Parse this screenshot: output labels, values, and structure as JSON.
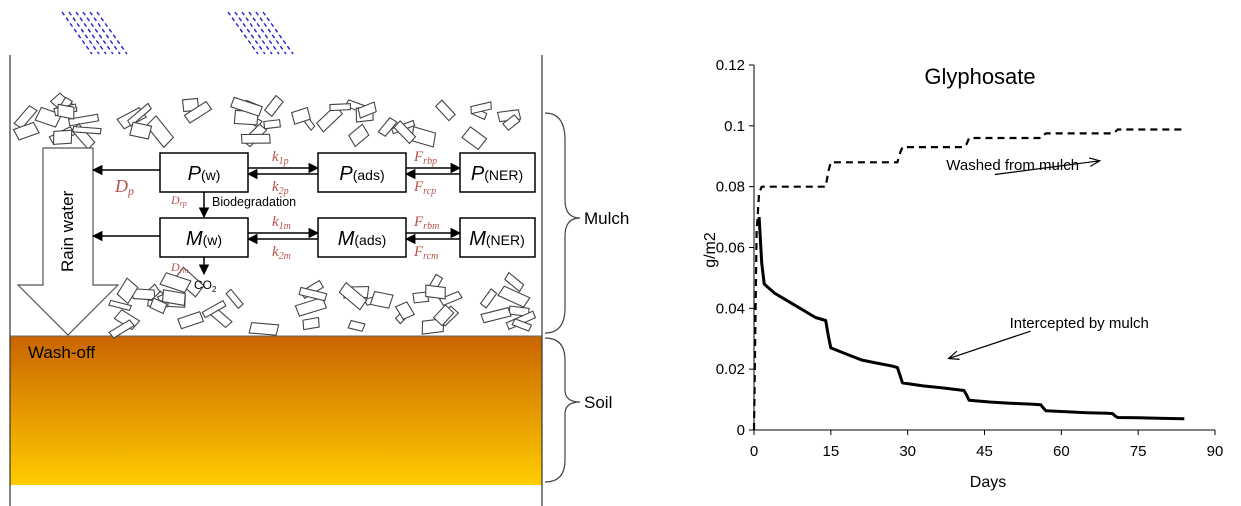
{
  "diagram": {
    "left_labels": {
      "rain_water": "Rain water",
      "wash_off": "Wash-off"
    },
    "layers": {
      "mulch": "Mulch",
      "soil": "Soil"
    },
    "boxes": {
      "pw": {
        "var": "P",
        "sub": "(w)"
      },
      "pads": {
        "var": "P",
        "sub": "(ads)"
      },
      "pner": {
        "var": "P",
        "sub": "(NER)"
      },
      "mw": {
        "var": "M",
        "sub": "(w)"
      },
      "mads": {
        "var": "M",
        "sub": "(ads)"
      },
      "mner": {
        "var": "M",
        "sub": "(NER)"
      }
    },
    "rates": {
      "k1p": {
        "base": "k",
        "sub": "1p"
      },
      "k2p": {
        "base": "k",
        "sub": "2p"
      },
      "k1m": {
        "base": "k",
        "sub": "1m"
      },
      "k2m": {
        "base": "k",
        "sub": "2m"
      },
      "frbp": {
        "base": "F",
        "sub": "rbp"
      },
      "frcp": {
        "base": "F",
        "sub": "rcp"
      },
      "frbm": {
        "base": "F",
        "sub": "rbm"
      },
      "frcm": {
        "base": "F",
        "sub": "rcm"
      },
      "dp": {
        "base": "D",
        "sub": "p"
      },
      "drp": {
        "base": "D",
        "sub": "rp"
      },
      "drm": {
        "base": "D",
        "sub": "rm"
      }
    },
    "biodegradation": "Biodegradation",
    "co2": {
      "base": "CO",
      "sub": "2"
    },
    "colors": {
      "soil_top": "#c96400",
      "soil_bottom": "#ffcc00",
      "rain": "#1f1fd0",
      "rate_label": "#b7504a"
    }
  },
  "chart_data": {
    "type": "line",
    "title": "Glyphosate",
    "xlabel": "Days",
    "ylabel": "g/m2",
    "xlim": [
      0,
      90
    ],
    "ylim": [
      0,
      0.12
    ],
    "xticks": [
      0,
      15,
      30,
      45,
      60,
      75,
      90
    ],
    "yticks": [
      0,
      0.02,
      0.04,
      0.06,
      0.08,
      0.1,
      0.12
    ],
    "xtick_labels": [
      "0",
      "15",
      "30",
      "45",
      "60",
      "75",
      "90"
    ],
    "ytick_labels": [
      "0",
      "0.02",
      "0.04",
      "0.06",
      "0.08",
      "0.1",
      "0.12"
    ],
    "grid": false,
    "series": [
      {
        "style": "dashed",
        "x": [
          0,
          0.5,
          1,
          1.5,
          2,
          14,
          14.5,
          15,
          28,
          28.5,
          29,
          41,
          41.5,
          42,
          56,
          56.5,
          57,
          70,
          70.5,
          71,
          84
        ],
        "y": [
          0,
          0.065,
          0.078,
          0.08,
          0.08,
          0.08,
          0.085,
          0.088,
          0.088,
          0.091,
          0.093,
          0.093,
          0.094,
          0.096,
          0.096,
          0.097,
          0.0975,
          0.0975,
          0.098,
          0.0988,
          0.0988
        ]
      },
      {
        "style": "solid",
        "x": [
          1,
          1.5,
          2,
          4,
          6,
          8,
          10,
          12,
          14,
          14.5,
          15,
          18,
          21,
          24,
          27,
          28,
          28.5,
          29,
          33,
          37,
          41,
          41.5,
          42,
          46,
          50,
          54,
          56,
          56.5,
          57,
          61,
          65,
          69,
          70,
          70.5,
          71,
          75,
          80,
          84
        ],
        "y": [
          0.07,
          0.055,
          0.048,
          0.045,
          0.043,
          0.041,
          0.039,
          0.037,
          0.036,
          0.031,
          0.027,
          0.025,
          0.023,
          0.022,
          0.021,
          0.0205,
          0.018,
          0.0155,
          0.0145,
          0.0138,
          0.013,
          0.0115,
          0.0098,
          0.0092,
          0.0088,
          0.0085,
          0.0083,
          0.0072,
          0.0063,
          0.006,
          0.0057,
          0.0055,
          0.0054,
          0.0046,
          0.0041,
          0.004,
          0.0038,
          0.0037
        ]
      }
    ],
    "annotations": [
      {
        "text": "Washed from mulch",
        "x": 50.5,
        "y": 0.0855
      },
      {
        "text": "Intercepted by mulch",
        "x": 63.5,
        "y": 0.0335
      }
    ]
  }
}
